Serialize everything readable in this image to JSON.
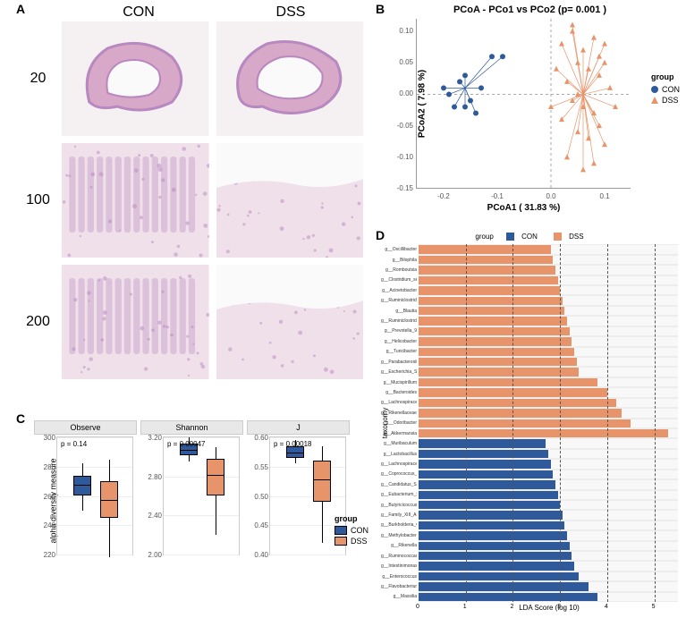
{
  "colors": {
    "con": "#2e5a9c",
    "dss": "#e8946b",
    "histology_pink": "#d8a8c8",
    "histology_purple": "#b888c0",
    "histology_light": "#e8d0e0",
    "panel_bg": "#ededed",
    "grid": "#e0e0e0"
  },
  "panelA": {
    "label": "A",
    "columns": [
      "CON",
      "DSS"
    ],
    "magnifications": [
      "20",
      "100",
      "200"
    ]
  },
  "panelB": {
    "label": "B",
    "title": "PCoA - PCo1 vs PCo2 (p= 0.001 )",
    "xlabel": "PCoA1 ( 31.83 %)",
    "ylabel": "PCoA2 ( 7.98 %)",
    "xlim": [
      -0.25,
      0.15
    ],
    "ylim": [
      -0.15,
      0.12
    ],
    "xticks": [
      -0.2,
      -0.1,
      0.0,
      0.1
    ],
    "yticks": [
      -0.15,
      -0.1,
      -0.05,
      0.0,
      0.05,
      0.1
    ],
    "legend_title": "group",
    "groups": [
      {
        "name": "CON",
        "color": "#2e5a9c",
        "marker": "circle"
      },
      {
        "name": "DSS",
        "color": "#e8946b",
        "marker": "triangle"
      }
    ],
    "con_points": [
      [
        -0.2,
        0.01
      ],
      [
        -0.18,
        -0.02
      ],
      [
        -0.16,
        0.03
      ],
      [
        -0.15,
        -0.01
      ],
      [
        -0.17,
        0.02
      ],
      [
        -0.14,
        -0.03
      ],
      [
        -0.19,
        0.0
      ],
      [
        -0.13,
        0.01
      ],
      [
        -0.16,
        -0.02
      ],
      [
        -0.11,
        0.06
      ],
      [
        -0.09,
        0.06
      ]
    ],
    "dss_points": [
      [
        0.02,
        0.08
      ],
      [
        0.04,
        0.1
      ],
      [
        0.06,
        0.07
      ],
      [
        0.08,
        0.09
      ],
      [
        0.05,
        0.05
      ],
      [
        0.07,
        0.04
      ],
      [
        0.03,
        0.02
      ],
      [
        0.09,
        0.03
      ],
      [
        0.1,
        0.05
      ],
      [
        0.04,
        -0.01
      ],
      [
        0.06,
        -0.02
      ],
      [
        0.08,
        -0.03
      ],
      [
        0.02,
        -0.04
      ],
      [
        0.05,
        -0.06
      ],
      [
        0.07,
        -0.07
      ],
      [
        0.09,
        -0.05
      ],
      [
        0.1,
        -0.08
      ],
      [
        0.03,
        -0.1
      ],
      [
        0.06,
        -0.12
      ],
      [
        0.08,
        -0.11
      ],
      [
        0.11,
        0.01
      ],
      [
        0.12,
        -0.02
      ],
      [
        0.1,
        0.08
      ],
      [
        0.04,
        0.11
      ],
      [
        0.01,
        0.04
      ],
      [
        0.0,
        -0.02
      ],
      [
        0.05,
        0.0
      ],
      [
        0.09,
        0.06
      ]
    ],
    "con_centroid": [
      -0.16,
      0.01
    ],
    "dss_centroid": [
      0.06,
      0.0
    ]
  },
  "panelC": {
    "label": "C",
    "ylabel": "alpha diversity measure",
    "legend_title": "group",
    "metrics": [
      {
        "name": "Observe",
        "pvalue": "p = 0.14",
        "ytick_min": 220,
        "ytick_max": 300,
        "ytick_step": 20,
        "con": {
          "q1": 260,
          "median": 268,
          "q3": 274,
          "low": 250,
          "high": 282
        },
        "dss": {
          "q1": 245,
          "median": 258,
          "q3": 270,
          "low": 218,
          "high": 285
        }
      },
      {
        "name": "Shannon",
        "pvalue": "p = 0.00047",
        "ytick_min": 2.0,
        "ytick_max": 3.2,
        "ytick_step": 0.4,
        "con": {
          "q1": 3.02,
          "median": 3.08,
          "q3": 3.14,
          "low": 2.95,
          "high": 3.2
        },
        "dss": {
          "q1": 2.6,
          "median": 2.82,
          "q3": 2.98,
          "low": 2.2,
          "high": 3.1
        }
      },
      {
        "name": "J",
        "pvalue": "p = 0.00018",
        "ytick_min": 0.4,
        "ytick_max": 0.6,
        "ytick_step": 0.05,
        "con": {
          "q1": 0.565,
          "median": 0.575,
          "q3": 0.585,
          "low": 0.555,
          "high": 0.595
        },
        "dss": {
          "q1": 0.49,
          "median": 0.53,
          "q3": 0.56,
          "low": 0.42,
          "high": 0.585
        }
      }
    ]
  },
  "panelD": {
    "label": "D",
    "legend_title": "group",
    "xlabel": "LDA Score (log 10)",
    "ylabel": "taxonomy",
    "xlim": [
      0,
      5.5
    ],
    "xticks": [
      0,
      1,
      2,
      3,
      4,
      5
    ],
    "grid_lines": [
      1,
      2,
      3,
      4,
      5
    ],
    "taxa": [
      {
        "name": "g__Oscillibacter",
        "score": 2.8,
        "group": "DSS"
      },
      {
        "name": "g__Bilophila",
        "score": 2.85,
        "group": "DSS"
      },
      {
        "name": "g__Romboutsia",
        "score": 2.9,
        "group": "DSS"
      },
      {
        "name": "g__Clostridium_sensu_stricto_1",
        "score": 2.95,
        "group": "DSS"
      },
      {
        "name": "g__Acinetobacter",
        "score": 3.0,
        "group": "DSS"
      },
      {
        "name": "g__Ruminiclostridium",
        "score": 3.05,
        "group": "DSS"
      },
      {
        "name": "g__Blautia",
        "score": 3.1,
        "group": "DSS"
      },
      {
        "name": "g__Ruminiclostridium_6",
        "score": 3.15,
        "group": "DSS"
      },
      {
        "name": "g__Prevotella_9",
        "score": 3.2,
        "group": "DSS"
      },
      {
        "name": "g__Helicobacter",
        "score": 3.25,
        "group": "DSS"
      },
      {
        "name": "g__Turicibacter",
        "score": 3.3,
        "group": "DSS"
      },
      {
        "name": "g__Parabacteroides",
        "score": 3.35,
        "group": "DSS"
      },
      {
        "name": "g__Escherichia_Shigella",
        "score": 3.4,
        "group": "DSS"
      },
      {
        "name": "g__Mucispirillum",
        "score": 3.8,
        "group": "DSS"
      },
      {
        "name": "g__Bacteroides",
        "score": 4.0,
        "group": "DSS"
      },
      {
        "name": "g__Lachnospiraceae_NKA4136_group",
        "score": 4.2,
        "group": "DSS"
      },
      {
        "name": "g__Rikenellaceae_RC9_gut_group",
        "score": 4.3,
        "group": "DSS"
      },
      {
        "name": "g__Odoribacter",
        "score": 4.5,
        "group": "DSS"
      },
      {
        "name": "g__Akkermansia",
        "score": 5.3,
        "group": "DSS"
      },
      {
        "name": "g__Muribaculum",
        "score": 2.7,
        "group": "CON"
      },
      {
        "name": "g__Lactobacillus",
        "score": 2.75,
        "group": "CON"
      },
      {
        "name": "g__Lachnospiraceae_UCG_001",
        "score": 2.8,
        "group": "CON"
      },
      {
        "name": "g__Coprococcus_2",
        "score": 2.85,
        "group": "CON"
      },
      {
        "name": "g__Candidatus_Saccharimonas",
        "score": 2.9,
        "group": "CON"
      },
      {
        "name": "g__Eubacterium_xylanophilum_group",
        "score": 2.95,
        "group": "CON"
      },
      {
        "name": "g__Butyricicoccus",
        "score": 3.0,
        "group": "CON"
      },
      {
        "name": "g__Family_XIII_AD3011_group",
        "score": 3.05,
        "group": "CON"
      },
      {
        "name": "g__Burkholderia_Caballeronia_Paraburkholderia",
        "score": 3.1,
        "group": "CON"
      },
      {
        "name": "g__Methylobacterium",
        "score": 3.15,
        "group": "CON"
      },
      {
        "name": "g__Rikenella",
        "score": 3.2,
        "group": "CON"
      },
      {
        "name": "g__Ruminococcaceae_UCG_009",
        "score": 3.25,
        "group": "CON"
      },
      {
        "name": "g__Intestinimonas",
        "score": 3.3,
        "group": "CON"
      },
      {
        "name": "g__Enterococcus",
        "score": 3.4,
        "group": "CON"
      },
      {
        "name": "g__Flavobacterium",
        "score": 3.6,
        "group": "CON"
      },
      {
        "name": "g__Massilia",
        "score": 3.8,
        "group": "CON"
      }
    ]
  }
}
